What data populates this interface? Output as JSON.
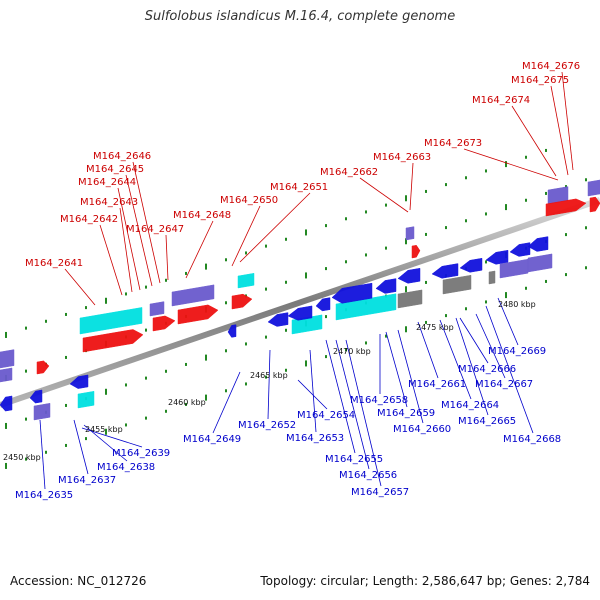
{
  "title": "Sulfolobus islandicus M.16.4, complete genome",
  "footer": {
    "accession": "Accession: NC_012726",
    "stats": "Topology: circular; Length: 2,586,647 bp; Genes: 2,784"
  },
  "colors": {
    "forward_cds": "#ee1111",
    "reverse_cds": "#1111dd",
    "rna": "#00e0e0",
    "pseudo": "#6a5acd",
    "other": "#777777",
    "label_forward": "#cc0000",
    "label_reverse": "#0000cc",
    "backbone": "#888888",
    "tick": "#228822"
  },
  "ruler": [
    "2450 kbp",
    "2455 kbp",
    "2460 kbp",
    "2465 kbp",
    "2470 kbp",
    "2475 kbp",
    "2480 kbp"
  ],
  "labels_forward": [
    "M164_2641",
    "M164_2642",
    "M164_2643",
    "M164_2644",
    "M164_2645",
    "M164_2646",
    "M164_2647",
    "M164_2648",
    "M164_2650",
    "M164_2651",
    "M164_2662",
    "M164_2663",
    "M164_2673",
    "M164_2674",
    "M164_2675",
    "M164_2676"
  ],
  "labels_reverse": [
    "M164_2635",
    "M164_2637",
    "M164_2638",
    "M164_2639",
    "M164_2649",
    "M164_2652",
    "M164_2653",
    "M164_2654",
    "M164_2655",
    "M164_2656",
    "M164_2657",
    "M164_2658",
    "M164_2659",
    "M164_2660",
    "M164_2661",
    "M164_2664",
    "M164_2665",
    "M164_2666",
    "M164_2667",
    "M164_2668",
    "M164_2669"
  ]
}
